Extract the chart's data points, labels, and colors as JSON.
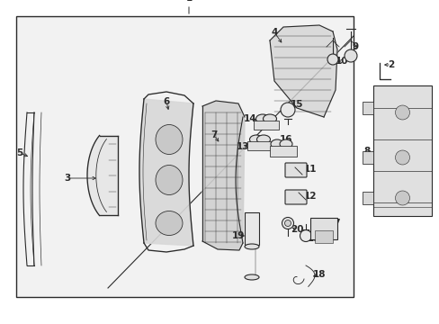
{
  "bg_color": "#f2f2f2",
  "line_color": "#2a2a2a",
  "fig_width": 4.89,
  "fig_height": 3.6,
  "dpi": 100,
  "label_fontsize": 7.5,
  "label_fontsize_small": 6.5
}
